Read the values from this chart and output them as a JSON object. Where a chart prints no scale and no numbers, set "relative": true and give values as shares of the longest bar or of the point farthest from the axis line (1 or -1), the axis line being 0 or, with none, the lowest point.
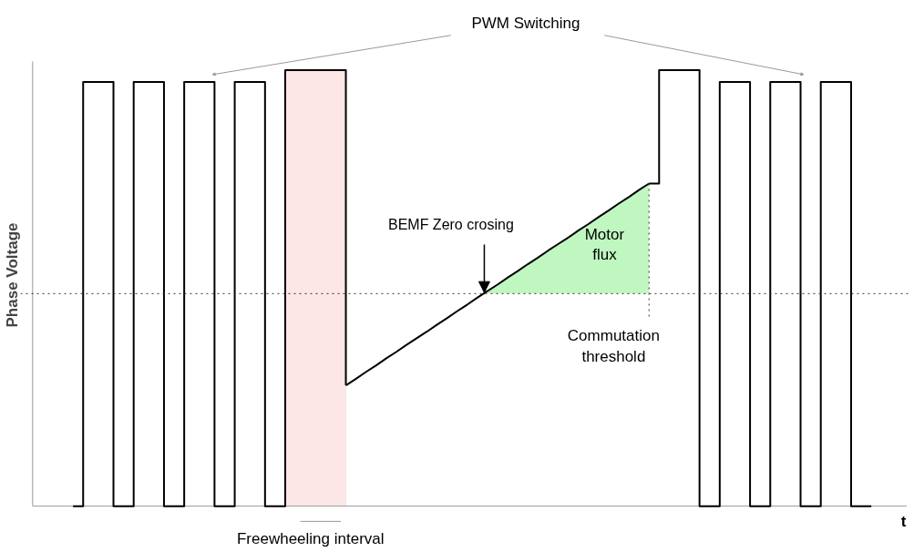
{
  "chart_data": {
    "type": "step",
    "relative": true,
    "ylabel": "Phase Voltage",
    "xlabel": "t",
    "categories": [
      null,
      null,
      null,
      null,
      null,
      null,
      null,
      null,
      null,
      null,
      null,
      null,
      null,
      null,
      null,
      null,
      null,
      null,
      null,
      null,
      null,
      null,
      null,
      null,
      null,
      null,
      null,
      null,
      null,
      null,
      null,
      null,
      null,
      null,
      null,
      null,
      null,
      null,
      null,
      null,
      null,
      null,
      null,
      null,
      null,
      null,
      null,
      null,
      null,
      null,
      null,
      null,
      null,
      null,
      null,
      null,
      null,
      null,
      null,
      null,
      null,
      null,
      null,
      null,
      null,
      null,
      null,
      null,
      null,
      null,
      null,
      null,
      null,
      null,
      null,
      null,
      null,
      null,
      null,
      null,
      null,
      null
    ],
    "series": [
      {
        "color": "#000000",
        "values": [
          null,
          null,
          0,
          0.973,
          0.973,
          0.973,
          0,
          0,
          0.973,
          0.973,
          0.973,
          0,
          0,
          0.973,
          0.973,
          0.973,
          0,
          0,
          0.973,
          0.973,
          0.973,
          0,
          0,
          1,
          1,
          1,
          1,
          1,
          1,
          0.277,
          null,
          null,
          null,
          null,
          null,
          null,
          null,
          null,
          null,
          null,
          null,
          null,
          null,
          null,
          null,
          null,
          null,
          null,
          null,
          null,
          null,
          null,
          null,
          null,
          null,
          null,
          null,
          null,
          null,
          0.74,
          1,
          1,
          1,
          1,
          0,
          0,
          0.973,
          0.973,
          0.973,
          0,
          0,
          0.973,
          0.973,
          0.973,
          0,
          0,
          0.973,
          0.973,
          0.973,
          0,
          0,
          0
        ]
      },
      {
        "type": "line",
        "color": "#000000",
        "values": [
          null,
          null,
          null,
          null,
          null,
          null,
          null,
          null,
          null,
          null,
          null,
          null,
          null,
          null,
          null,
          null,
          null,
          null,
          null,
          null,
          null,
          null,
          null,
          null,
          null,
          null,
          null,
          null,
          null,
          0.277,
          0.292,
          0.308,
          0.323,
          0.339,
          0.354,
          0.37,
          0.385,
          0.4,
          0.416,
          0.431,
          0.447,
          0.462,
          0.478,
          0.493,
          0.508,
          0.524,
          0.539,
          0.555,
          0.57,
          0.586,
          0.601,
          0.616,
          0.632,
          0.647,
          0.663,
          0.678,
          0.694,
          0.709,
          0.725,
          0.74,
          null,
          null,
          null,
          null,
          null,
          null,
          null,
          null,
          null,
          null,
          null,
          null,
          null,
          null,
          null,
          null,
          null,
          null,
          null,
          null,
          null,
          null
        ]
      },
      {
        "type": "area",
        "color": "#c0f7c0",
        "values": [
          null,
          null,
          null,
          null,
          null,
          null,
          null,
          null,
          null,
          null,
          null,
          null,
          null,
          null,
          null,
          null,
          null,
          null,
          null,
          null,
          null,
          null,
          null,
          null,
          null,
          null,
          null,
          null,
          null,
          null,
          null,
          null,
          null,
          null,
          null,
          null,
          null,
          null,
          null,
          null,
          null,
          null,
          null,
          0.493,
          0.508,
          0.524,
          0.539,
          0.555,
          0.57,
          0.586,
          0.601,
          0.616,
          0.632,
          0.647,
          0.663,
          0.678,
          0.694,
          0.709,
          0.725,
          0.74,
          null,
          null,
          null,
          null,
          null,
          null,
          null,
          null,
          null,
          null,
          null,
          null,
          null,
          null,
          null,
          null,
          null,
          null,
          null,
          null,
          null,
          null
        ]
      }
    ],
    "ref_lines": [
      {
        "axis": "y",
        "value": 0.4875,
        "color": "#333333",
        "line_style": "dotted"
      }
    ],
    "annotations": [
      "PWM Switching",
      "BEMF Zero crosing",
      "Motor flux",
      "Commutation threshold",
      "Freewheeling interval"
    ],
    "grid": false
  }
}
